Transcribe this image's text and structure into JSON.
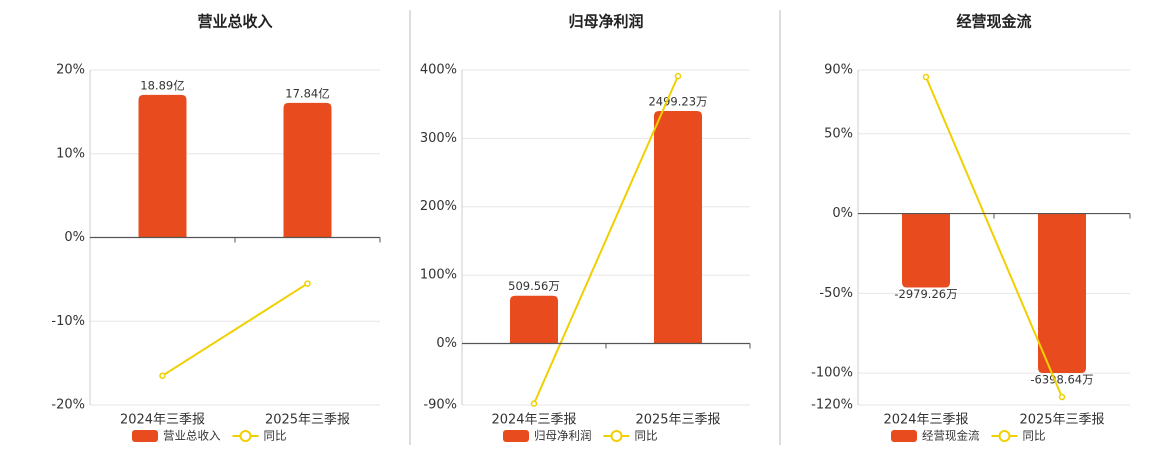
{
  "chart_data": [
    {
      "type": "combo",
      "title": "营业总收入",
      "categories": [
        "2024年三季报",
        "2025年三季报"
      ],
      "series": [
        {
          "name": "营业总收入",
          "color": "#e84c1e",
          "axis": "y2",
          "values": [
            18.89,
            17.84
          ],
          "value_labels": [
            "18.89亿",
            "17.84亿"
          ]
        },
        {
          "name": "同比",
          "color": "#f0d000",
          "type": "line",
          "values": [
            -16.5,
            -5.5
          ]
        }
      ],
      "ylim": [
        -20,
        20
      ],
      "yticks": [
        {
          "value": 20,
          "label": "20%"
        },
        {
          "value": 10,
          "label": "10%"
        },
        {
          "value": 0,
          "label": "0%"
        },
        {
          "value": -10,
          "label": "-10%"
        },
        {
          "value": -20,
          "label": "-20%"
        }
      ],
      "y2lim": [
        -22.19,
        22.19
      ],
      "grid": true
    },
    {
      "type": "combo",
      "title": "归母净利润",
      "categories": [
        "2024年三季报",
        "2025年三季报"
      ],
      "series": [
        {
          "name": "归母净利润",
          "color": "#e84c1e",
          "axis": "y2",
          "values": [
            509.56,
            2499.23
          ],
          "value_labels": [
            "509.56万",
            "2499.23万"
          ]
        },
        {
          "name": "同比",
          "color": "#f0d000",
          "type": "line",
          "values": [
            -88,
            391
          ]
        }
      ],
      "ylim": [
        -90,
        400
      ],
      "yticks": [
        {
          "value": 400,
          "label": "400%"
        },
        {
          "value": 300,
          "label": "300%"
        },
        {
          "value": 200,
          "label": "200%"
        },
        {
          "value": 100,
          "label": "100%"
        },
        {
          "value": 0,
          "label": "0%"
        },
        {
          "value": -90,
          "label": "-90%"
        }
      ],
      "y2lim": [
        -668,
        2941
      ],
      "grid": true
    },
    {
      "type": "combo",
      "title": "经营现金流",
      "categories": [
        "2024年三季报",
        "2025年三季报"
      ],
      "series": [
        {
          "name": "经营现金流",
          "color": "#e84c1e",
          "axis": "y2",
          "values": [
            -2979.26,
            -6398.64
          ],
          "value_labels": [
            "-2979.26万",
            "-6398.64万"
          ]
        },
        {
          "name": "同比",
          "color": "#f0d000",
          "type": "line",
          "values": [
            85.6,
            -115
          ]
        }
      ],
      "ylim": [
        -120,
        90
      ],
      "yticks": [
        {
          "value": 90,
          "label": "90%"
        },
        {
          "value": 50,
          "label": "50%"
        },
        {
          "value": 0,
          "label": "0%"
        },
        {
          "value": -50,
          "label": "-50%"
        },
        {
          "value": -100,
          "label": "-100%"
        },
        {
          "value": -120,
          "label": "-120%"
        }
      ],
      "y2lim": [
        -7679,
        5719
      ],
      "grid": true
    }
  ]
}
